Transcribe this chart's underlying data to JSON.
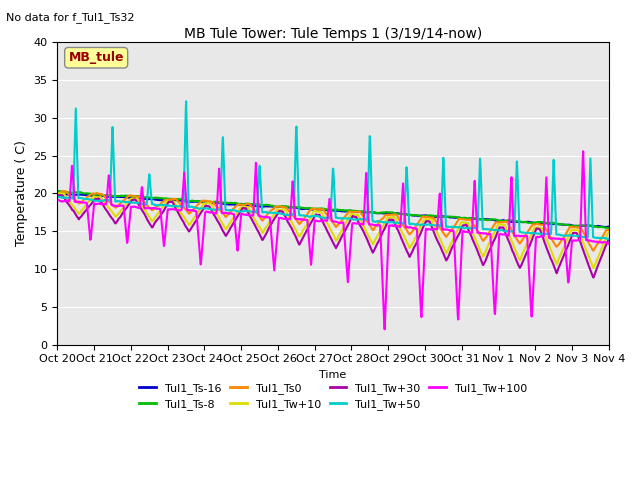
{
  "title": "MB Tule Tower: Tule Temps 1 (3/19/14-now)",
  "subtitle": "No data for f_Tul1_Ts32",
  "xlabel": "Time",
  "ylabel": "Temperature ( C)",
  "ylim": [
    0,
    40
  ],
  "plot_bg": "#e8e8e8",
  "series": {
    "Tul1_Ts-16": {
      "color": "#0000cc",
      "lw": 1.5
    },
    "Tul1_Ts-8": {
      "color": "#00bb00",
      "lw": 1.5
    },
    "Tul1_Ts0": {
      "color": "#ff8800",
      "lw": 1.5
    },
    "Tul1_Tw+10": {
      "color": "#dddd00",
      "lw": 1.5
    },
    "Tul1_Tw+30": {
      "color": "#aa00aa",
      "lw": 1.5
    },
    "Tul1_Tw+50": {
      "color": "#00cccc",
      "lw": 1.5
    },
    "Tul1_Tw+100": {
      "color": "#ff00ff",
      "lw": 1.5
    }
  },
  "x_tick_labels": [
    "Oct 20",
    "Oct 21",
    "Oct 22",
    "Oct 23",
    "Oct 24",
    "Oct 25",
    "Oct 26",
    "Oct 27",
    "Oct 28",
    "Oct 29",
    "Oct 30",
    "Oct 31",
    "Nov 1",
    "Nov 2",
    "Nov 3",
    "Nov 4"
  ],
  "legend_box_color": "#ffff99",
  "legend_box_text": "MB_tule",
  "legend_box_text_color": "#990000"
}
